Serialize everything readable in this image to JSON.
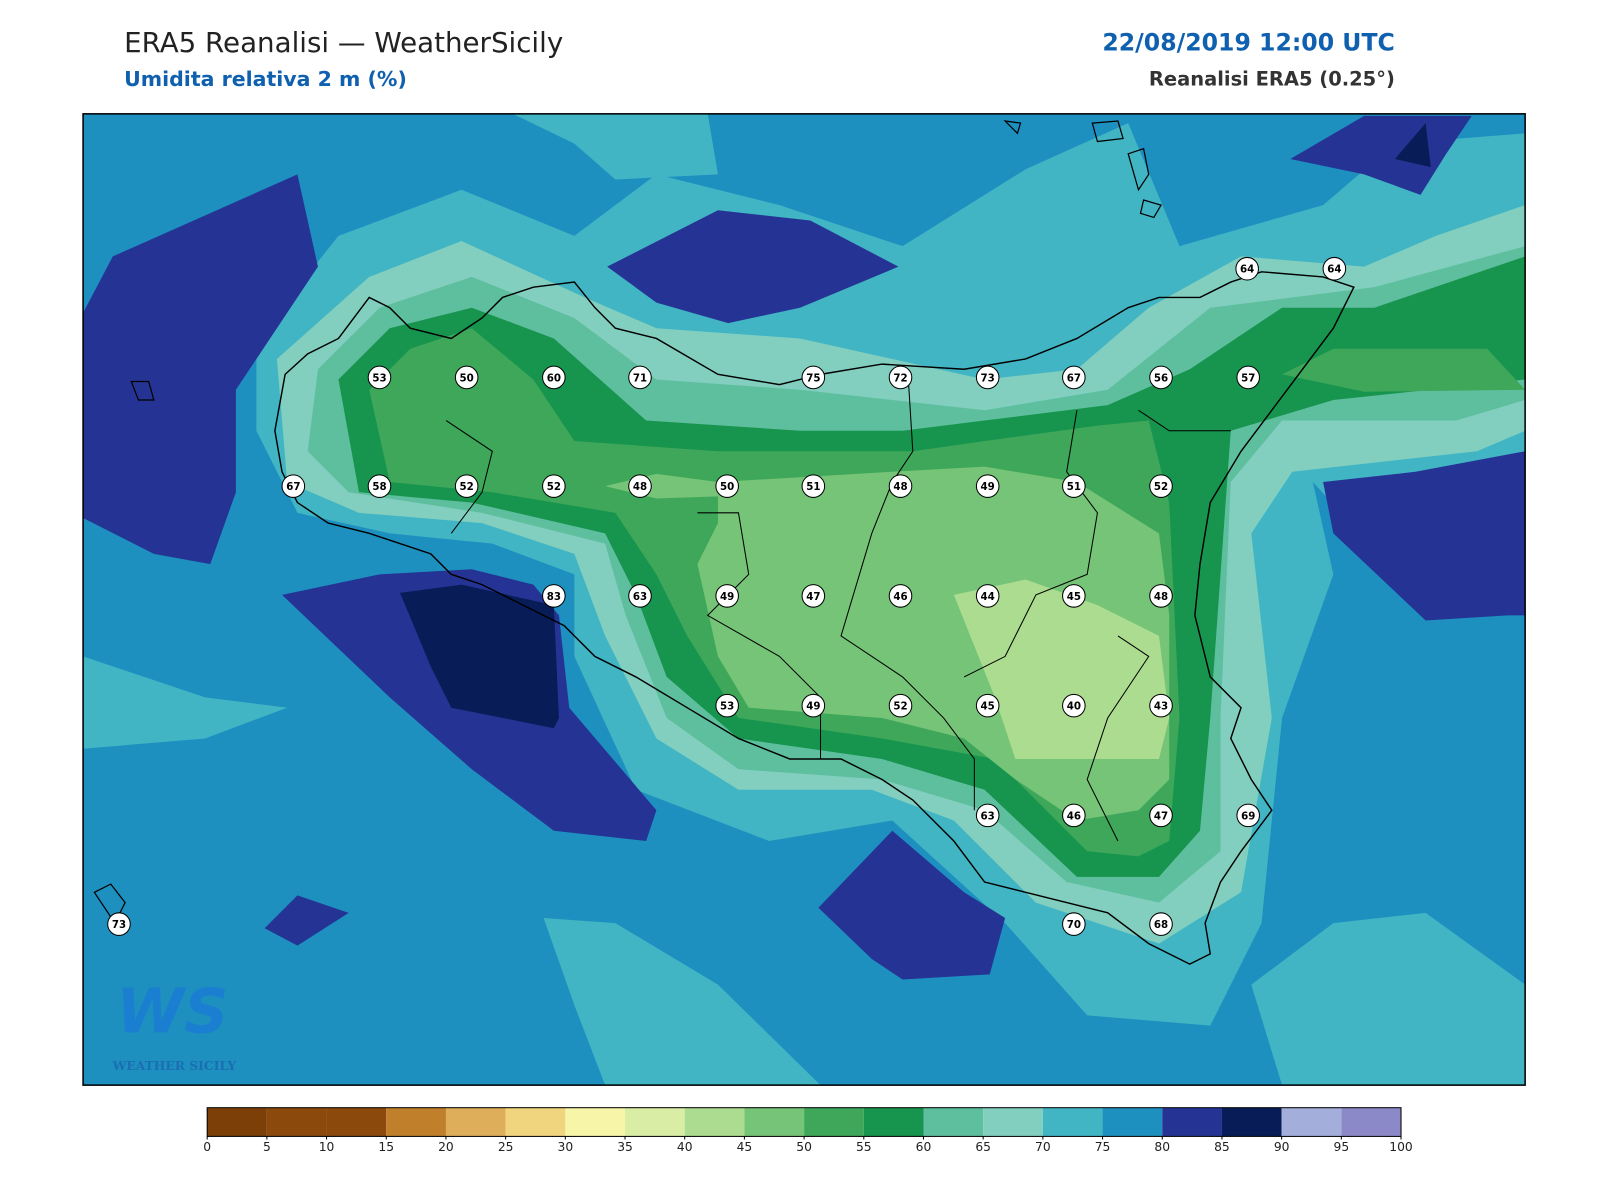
{
  "header": {
    "title": "ERA5 Reanalisi — WeatherSicily",
    "subtitle": "Umidita relativa 2 m (%)",
    "datetime": "22/08/2019 12:00 UTC",
    "source": "Reanalisi ERA5 (0.25°)"
  },
  "logo": {
    "mark": "WS",
    "name": "WEATHER SICILY"
  },
  "stations": [
    64,
    64,
    53,
    50,
    60,
    71,
    75,
    72,
    73,
    67,
    56,
    57,
    67,
    58,
    52,
    52,
    48,
    50,
    51,
    48,
    49,
    51,
    52,
    83,
    63,
    49,
    47,
    46,
    44,
    45,
    48,
    53,
    49,
    52,
    45,
    40,
    43,
    63,
    46,
    47,
    69,
    73,
    70,
    68
  ],
  "colorbar": {
    "ticks": [
      0,
      5,
      10,
      15,
      20,
      25,
      30,
      35,
      40,
      45,
      50,
      55,
      60,
      65,
      70,
      75,
      80,
      85,
      90,
      95,
      100
    ],
    "colors": [
      "#7b3f07",
      "#8b4a0c",
      "#8b4a0c",
      "#c07f2b",
      "#dfae5a",
      "#f0d47e",
      "#f6f5a8",
      "#d9eda4",
      "#acdc8f",
      "#76c477",
      "#3ea75a",
      "#17944d",
      "#5ebf9f",
      "#82cfbf",
      "#41b5c4",
      "#1d90c0",
      "#253494",
      "#081d58",
      "#a4aedb",
      "#8c89c8"
    ]
  }
}
